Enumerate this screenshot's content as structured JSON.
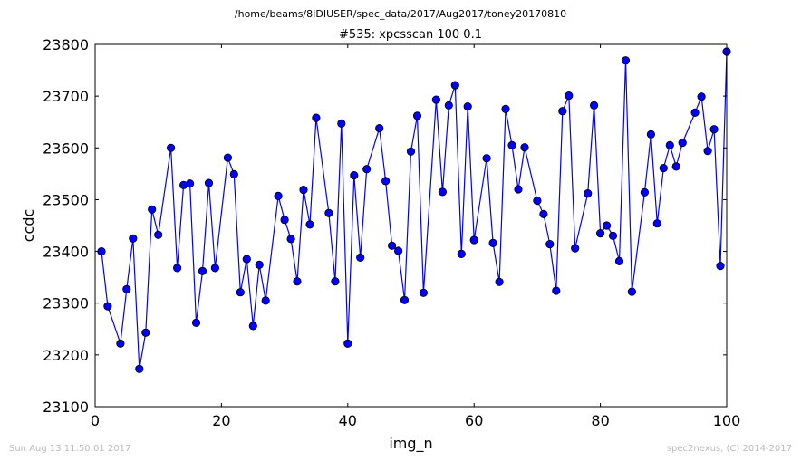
{
  "header": {
    "suptitle": "/home/beams/8IDIUSER/spec_data/2017/Aug2017/toney20170810"
  },
  "footer": {
    "timestamp": "Sun Aug 13 11:50:01 2017",
    "credit": "spec2nexus, (C) 2014-2017"
  },
  "colors": {
    "series": "#0000ff",
    "marker_fill": "#0000ff",
    "marker_edge": "#000000"
  },
  "chart_data": {
    "type": "line",
    "title": "#535: xpcsscan 100 0.1",
    "xlabel": "img_n",
    "ylabel": "ccdc",
    "xlim": [
      0,
      100
    ],
    "ylim": [
      23100,
      23800
    ],
    "xticks": [
      0,
      20,
      40,
      60,
      80,
      100
    ],
    "yticks": [
      23100,
      23200,
      23300,
      23400,
      23500,
      23600,
      23700,
      23800
    ],
    "grid": false,
    "markers": true,
    "series": [
      {
        "x": [
          1,
          2,
          4,
          5,
          6,
          7,
          8,
          9,
          10,
          12,
          13,
          14,
          15,
          16,
          17,
          18,
          19,
          21,
          22,
          23,
          24,
          25,
          26,
          27,
          29,
          30,
          31,
          32,
          33,
          34,
          35,
          37,
          38,
          39,
          40,
          41,
          42,
          43,
          45,
          46,
          47,
          48,
          49,
          50,
          51,
          52,
          54,
          55,
          56,
          57,
          58,
          59,
          60,
          62,
          63,
          64,
          65,
          66,
          67,
          68,
          70,
          71,
          72,
          73,
          74,
          75,
          76,
          78,
          79,
          80,
          81,
          82,
          83,
          84,
          85,
          87,
          88,
          89,
          90,
          91,
          92,
          93,
          95,
          96,
          97,
          98,
          99,
          100
        ],
        "values": [
          23400,
          23294,
          23222,
          23327,
          23425,
          23173,
          23243,
          23481,
          23432,
          23600,
          23368,
          23528,
          23531,
          23262,
          23362,
          23532,
          23368,
          23581,
          23549,
          23321,
          23385,
          23256,
          23374,
          23305,
          23507,
          23461,
          23424,
          23342,
          23519,
          23452,
          23658,
          23474,
          23342,
          23647,
          23222,
          23547,
          23388,
          23559,
          23638,
          23536,
          23411,
          23401,
          23306,
          23593,
          23662,
          23320,
          23693,
          23515,
          23682,
          23721,
          23395,
          23680,
          23422,
          23580,
          23416,
          23341,
          23675,
          23605,
          23520,
          23601,
          23498,
          23472,
          23414,
          23324,
          23671,
          23701,
          23406,
          23512,
          23682,
          23435,
          23450,
          23430,
          23381,
          23769,
          23322,
          23514,
          23626,
          23454,
          23561,
          23605,
          23564,
          23610,
          23668,
          23699,
          23594,
          23636,
          23372,
          23786
        ]
      }
    ]
  }
}
